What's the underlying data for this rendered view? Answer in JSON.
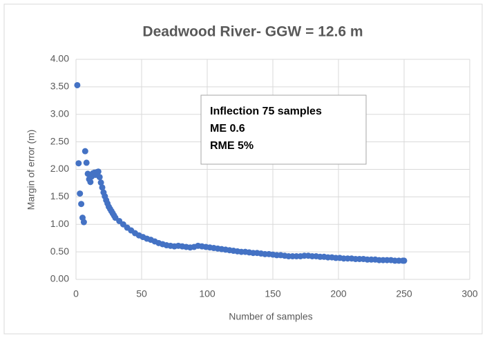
{
  "chart_data": {
    "type": "scatter",
    "title": "Deadwood River- GGW = 12.6 m",
    "x_label": "Number of samples",
    "y_label": "Margin of error (m)",
    "annotation": [
      "Inflection 75 samples",
      "ME 0.6",
      "RME 5%"
    ],
    "series": [
      {
        "name": "Margin of error",
        "color": "#4472c4",
        "x": [
          1,
          2,
          3,
          4,
          5,
          6,
          7,
          8,
          9,
          10,
          11,
          12,
          13,
          14,
          15,
          16,
          17,
          18,
          19,
          20,
          21,
          22,
          23,
          24,
          25,
          26,
          27,
          28,
          29,
          30,
          33,
          36,
          39,
          42,
          45,
          48,
          51,
          54,
          57,
          60,
          63,
          66,
          69,
          72,
          75,
          78,
          81,
          84,
          87,
          90,
          93,
          96,
          99,
          102,
          105,
          108,
          111,
          114,
          117,
          120,
          123,
          126,
          129,
          132,
          135,
          138,
          141,
          144,
          147,
          150,
          153,
          156,
          159,
          162,
          165,
          168,
          171,
          174,
          177,
          180,
          183,
          186,
          189,
          192,
          195,
          198,
          201,
          204,
          207,
          210,
          213,
          216,
          219,
          222,
          225,
          228,
          231,
          234,
          237,
          240,
          243,
          246,
          249,
          250
        ],
        "values": [
          3.53,
          2.11,
          1.56,
          1.37,
          1.12,
          1.04,
          2.33,
          2.12,
          1.92,
          1.82,
          1.77,
          1.87,
          1.93,
          1.94,
          1.9,
          1.95,
          1.96,
          1.86,
          1.76,
          1.67,
          1.58,
          1.51,
          1.44,
          1.38,
          1.32,
          1.28,
          1.24,
          1.2,
          1.16,
          1.12,
          1.06,
          1.0,
          0.94,
          0.89,
          0.84,
          0.8,
          0.77,
          0.74,
          0.72,
          0.69,
          0.66,
          0.64,
          0.62,
          0.61,
          0.6,
          0.61,
          0.6,
          0.59,
          0.58,
          0.59,
          0.61,
          0.6,
          0.59,
          0.58,
          0.57,
          0.56,
          0.55,
          0.54,
          0.53,
          0.52,
          0.51,
          0.5,
          0.5,
          0.49,
          0.48,
          0.48,
          0.47,
          0.46,
          0.46,
          0.45,
          0.44,
          0.44,
          0.43,
          0.42,
          0.42,
          0.42,
          0.42,
          0.43,
          0.43,
          0.42,
          0.42,
          0.41,
          0.41,
          0.4,
          0.4,
          0.39,
          0.39,
          0.38,
          0.38,
          0.38,
          0.37,
          0.37,
          0.37,
          0.36,
          0.36,
          0.36,
          0.35,
          0.35,
          0.35,
          0.35,
          0.34,
          0.34,
          0.34,
          0.34
        ]
      }
    ],
    "xlim": [
      0,
      300
    ],
    "xticks": [
      0,
      50,
      100,
      150,
      200,
      250,
      300
    ],
    "ylim": [
      0,
      4
    ],
    "yticks": [
      {
        "value": 0,
        "label": "0.00"
      },
      {
        "value": 0.5,
        "label": "0.50"
      },
      {
        "value": 1,
        "label": "1.00"
      },
      {
        "value": 1.5,
        "label": "1.50"
      },
      {
        "value": 2,
        "label": "2.00"
      },
      {
        "value": 2.5,
        "label": "2.50"
      },
      {
        "value": 3,
        "label": "3.00"
      },
      {
        "value": 3.5,
        "label": "3.50"
      },
      {
        "value": 4,
        "label": "4.00"
      }
    ],
    "grid": true
  }
}
